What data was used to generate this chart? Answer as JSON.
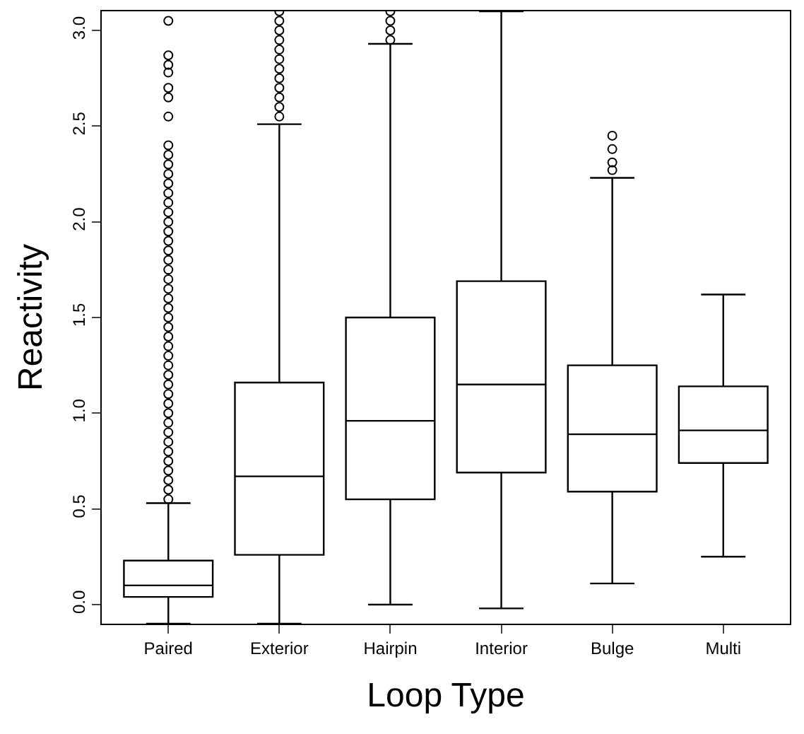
{
  "chart_data": {
    "type": "box",
    "xlabel": "Loop Type",
    "ylabel": "Reactivity",
    "categories": [
      "Paired",
      "Exterior",
      "Hairpin",
      "Interior",
      "Bulge",
      "Multi"
    ],
    "boxes": [
      {
        "low": -0.1,
        "q1": 0.04,
        "median": 0.1,
        "q3": 0.23,
        "high": 0.53,
        "outliers": [
          0.55,
          0.6,
          0.65,
          0.7,
          0.75,
          0.8,
          0.85,
          0.9,
          0.95,
          1.0,
          1.05,
          1.1,
          1.15,
          1.2,
          1.25,
          1.3,
          1.35,
          1.4,
          1.45,
          1.5,
          1.55,
          1.6,
          1.65,
          1.7,
          1.75,
          1.8,
          1.85,
          1.9,
          1.95,
          2.0,
          2.05,
          2.1,
          2.15,
          2.2,
          2.25,
          2.3,
          2.35,
          2.4,
          2.55,
          2.65,
          2.7,
          2.78,
          2.82,
          2.87,
          3.05
        ]
      },
      {
        "low": -0.1,
        "q1": 0.26,
        "median": 0.67,
        "q3": 1.16,
        "high": 2.51,
        "outliers": [
          2.55,
          2.6,
          2.65,
          2.7,
          2.75,
          2.8,
          2.85,
          2.9,
          2.95,
          3.0,
          3.05,
          3.1
        ]
      },
      {
        "low": 0.0,
        "q1": 0.55,
        "median": 0.96,
        "q3": 1.5,
        "high": 2.93,
        "outliers": [
          2.95,
          3.0,
          3.05,
          3.1
        ]
      },
      {
        "low": -0.02,
        "q1": 0.69,
        "median": 1.15,
        "q3": 1.69,
        "high": 3.1
      },
      {
        "low": 0.11,
        "q1": 0.59,
        "median": 0.89,
        "q3": 1.25,
        "high": 2.23,
        "outliers": [
          2.27,
          2.31,
          2.38,
          2.45
        ]
      },
      {
        "low": 0.25,
        "q1": 0.74,
        "median": 0.91,
        "q3": 1.14,
        "high": 1.62
      }
    ],
    "color": "#000000",
    "marker": "circle",
    "ylim": [
      -0.1,
      3.1
    ],
    "yticks": [
      {
        "value": 0,
        "label": "0.0"
      },
      0.5,
      {
        "value": 1,
        "label": "1.0"
      },
      1.5,
      {
        "value": 2,
        "label": "2.0"
      },
      2.5,
      {
        "value": 3,
        "label": "3.0"
      }
    ]
  }
}
